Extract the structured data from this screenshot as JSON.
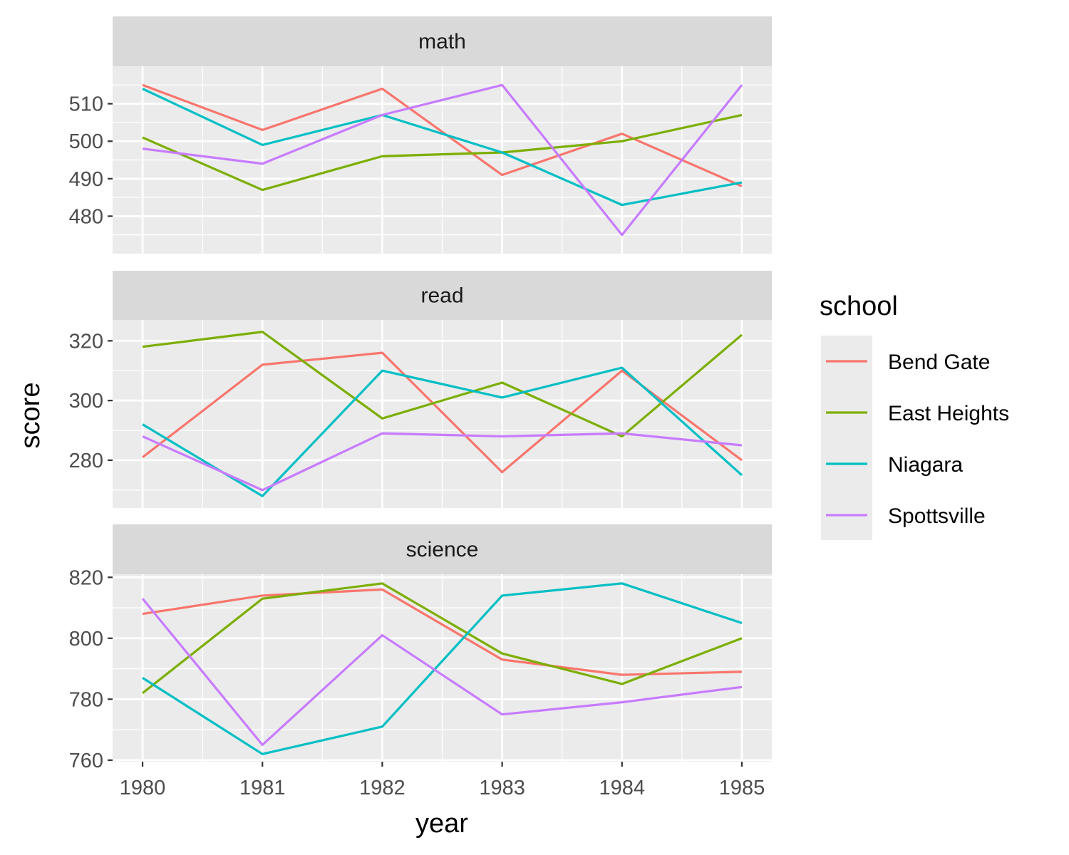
{
  "chart_data": {
    "type": "line",
    "x_label": "year",
    "y_label": "score",
    "x_ticks": [
      "1980",
      "1981",
      "1982",
      "1983",
      "1984",
      "1985"
    ],
    "x": [
      1980,
      1981,
      1982,
      1983,
      1984,
      1985
    ],
    "legend_title": "school",
    "legend_position": "right",
    "grid": true,
    "series_meta": [
      {
        "name": "Bend Gate",
        "color": "#F8766D"
      },
      {
        "name": "East Heights",
        "color": "#7CAE00"
      },
      {
        "name": "Niagara",
        "color": "#00BFC4"
      },
      {
        "name": "Spottsville",
        "color": "#C77CFF"
      }
    ],
    "panels": [
      {
        "strip": "math",
        "ylim": [
          470,
          520
        ],
        "y_ticks": [
          480,
          490,
          500,
          510
        ],
        "series": [
          {
            "name": "Bend Gate",
            "values": [
              515,
              503,
              514,
              491,
              502,
              488
            ]
          },
          {
            "name": "East Heights",
            "values": [
              501,
              487,
              496,
              497,
              500,
              507
            ]
          },
          {
            "name": "Niagara",
            "values": [
              514,
              499,
              507,
              497,
              483,
              489
            ]
          },
          {
            "name": "Spottsville",
            "values": [
              498,
              494,
              507,
              515,
              475,
              515
            ]
          }
        ]
      },
      {
        "strip": "read",
        "ylim": [
          264,
          327
        ],
        "y_ticks": [
          280,
          300,
          320
        ],
        "series": [
          {
            "name": "Bend Gate",
            "values": [
              281,
              312,
              316,
              276,
              310,
              280
            ]
          },
          {
            "name": "East Heights",
            "values": [
              318,
              323,
              294,
              306,
              288,
              322
            ]
          },
          {
            "name": "Niagara",
            "values": [
              292,
              268,
              310,
              301,
              311,
              275
            ]
          },
          {
            "name": "Spottsville",
            "values": [
              288,
              270,
              289,
              288,
              289,
              285
            ]
          }
        ]
      },
      {
        "strip": "science",
        "ylim": [
          759.5,
          821
        ],
        "y_ticks": [
          760,
          780,
          800,
          820
        ],
        "series": [
          {
            "name": "Bend Gate",
            "values": [
              808,
              814,
              816,
              793,
              788,
              789
            ]
          },
          {
            "name": "East Heights",
            "values": [
              782,
              813,
              818,
              795,
              785,
              800
            ]
          },
          {
            "name": "Niagara",
            "values": [
              787,
              762,
              771,
              814,
              818,
              805
            ]
          },
          {
            "name": "Spottsville",
            "values": [
              813,
              765,
              801,
              775,
              779,
              784
            ]
          }
        ]
      }
    ]
  }
}
